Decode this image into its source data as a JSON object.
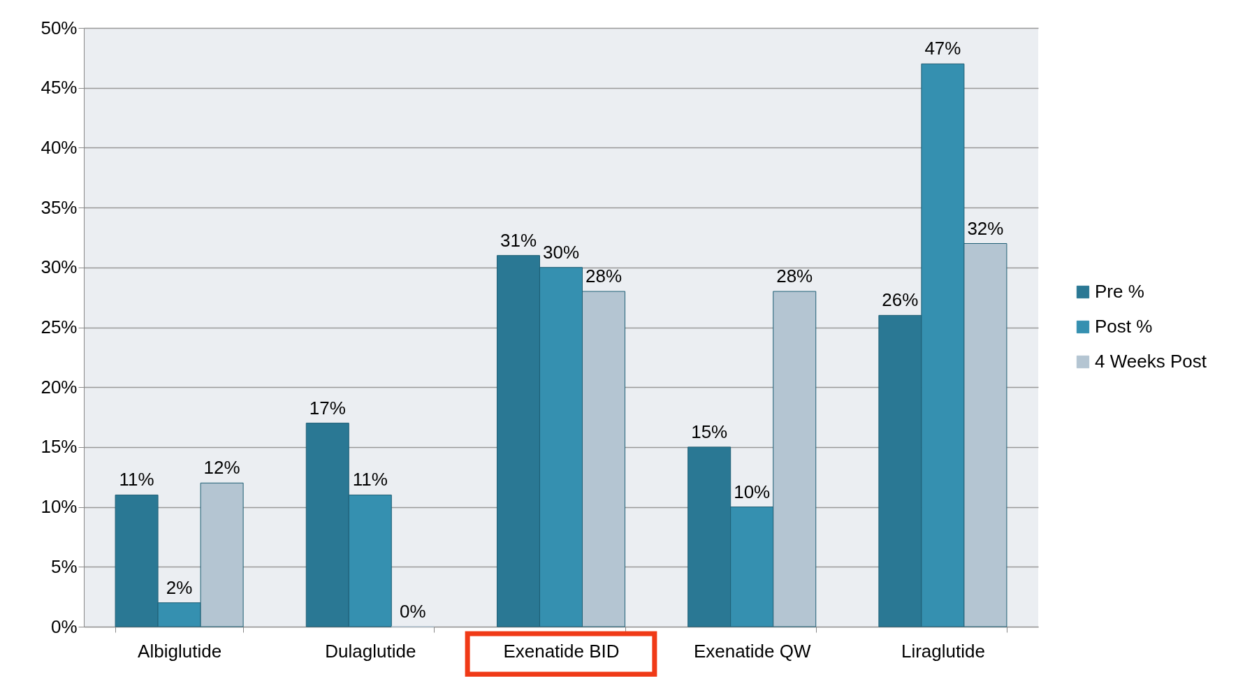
{
  "chart_data": {
    "type": "bar",
    "categories": [
      "Albiglutide",
      "Dulaglutide",
      "Exenatide BID",
      "Exenatide QW",
      "Liraglutide"
    ],
    "series": [
      {
        "name": "Pre %",
        "color": "#2a7894",
        "values": [
          11,
          17,
          31,
          15,
          26
        ],
        "value_labels": [
          "11%",
          "17%",
          "31%",
          "15%",
          "26%"
        ]
      },
      {
        "name": "Post %",
        "color": "#3590b0",
        "values": [
          2,
          11,
          30,
          10,
          47
        ],
        "value_labels": [
          "2%",
          "11%",
          "30%",
          "10%",
          "47%"
        ]
      },
      {
        "name": "4 Weeks Post",
        "color": "#b4c5d2",
        "values": [
          12,
          0,
          28,
          28,
          32
        ],
        "value_labels": [
          "12%",
          "0%",
          "28%",
          "28%",
          "32%"
        ]
      }
    ],
    "ylim": [
      0,
      50
    ],
    "yticks": [
      {
        "value": 0,
        "label": "0%"
      },
      {
        "value": 5,
        "label": "5%"
      },
      {
        "value": 10,
        "label": "10%"
      },
      {
        "value": 15,
        "label": "15%"
      },
      {
        "value": 20,
        "label": "20%"
      },
      {
        "value": 25,
        "label": "25%"
      },
      {
        "value": 30,
        "label": "30%"
      },
      {
        "value": 35,
        "label": "35%"
      },
      {
        "value": 40,
        "label": "40%"
      },
      {
        "value": 45,
        "label": "45%"
      },
      {
        "value": 50,
        "label": "50%"
      }
    ],
    "grid": "y",
    "legend": "right"
  }
}
